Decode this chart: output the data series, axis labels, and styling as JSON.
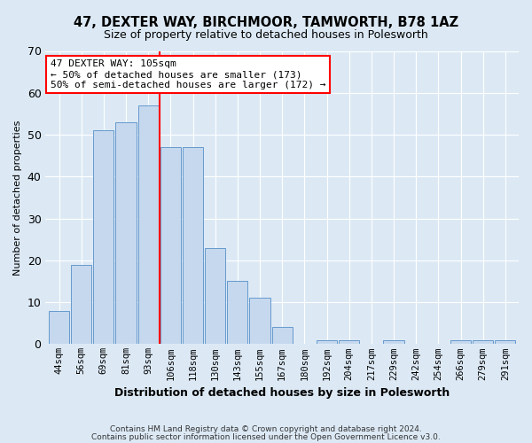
{
  "title": "47, DEXTER WAY, BIRCHMOOR, TAMWORTH, B78 1AZ",
  "subtitle": "Size of property relative to detached houses in Polesworth",
  "xlabel": "Distribution of detached houses by size in Polesworth",
  "ylabel": "Number of detached properties",
  "categories": [
    "44sqm",
    "56sqm",
    "69sqm",
    "81sqm",
    "93sqm",
    "106sqm",
    "118sqm",
    "130sqm",
    "143sqm",
    "155sqm",
    "167sqm",
    "180sqm",
    "192sqm",
    "204sqm",
    "217sqm",
    "229sqm",
    "242sqm",
    "254sqm",
    "266sqm",
    "279sqm",
    "291sqm"
  ],
  "values": [
    8,
    19,
    51,
    53,
    57,
    47,
    47,
    23,
    15,
    11,
    4,
    0,
    1,
    1,
    0,
    1,
    0,
    0,
    1,
    1,
    1
  ],
  "bar_color": "#c5d8ee",
  "bar_edge_color": "#6699cc",
  "red_line_x": 4.5,
  "annotation_line1": "47 DEXTER WAY: 105sqm",
  "annotation_line2": "← 50% of detached houses are smaller (173)",
  "annotation_line3": "50% of semi-detached houses are larger (172) →",
  "ylim": [
    0,
    70
  ],
  "yticks": [
    0,
    10,
    20,
    30,
    40,
    50,
    60,
    70
  ],
  "footer_line1": "Contains HM Land Registry data © Crown copyright and database right 2024.",
  "footer_line2": "Contains public sector information licensed under the Open Government Licence v3.0.",
  "bg_color": "#dce9f5",
  "plot_bg_color": "#dce9f5",
  "grid_color": "#ffffff",
  "title_fontsize": 10.5,
  "subtitle_fontsize": 9,
  "annotation_fontsize": 8
}
